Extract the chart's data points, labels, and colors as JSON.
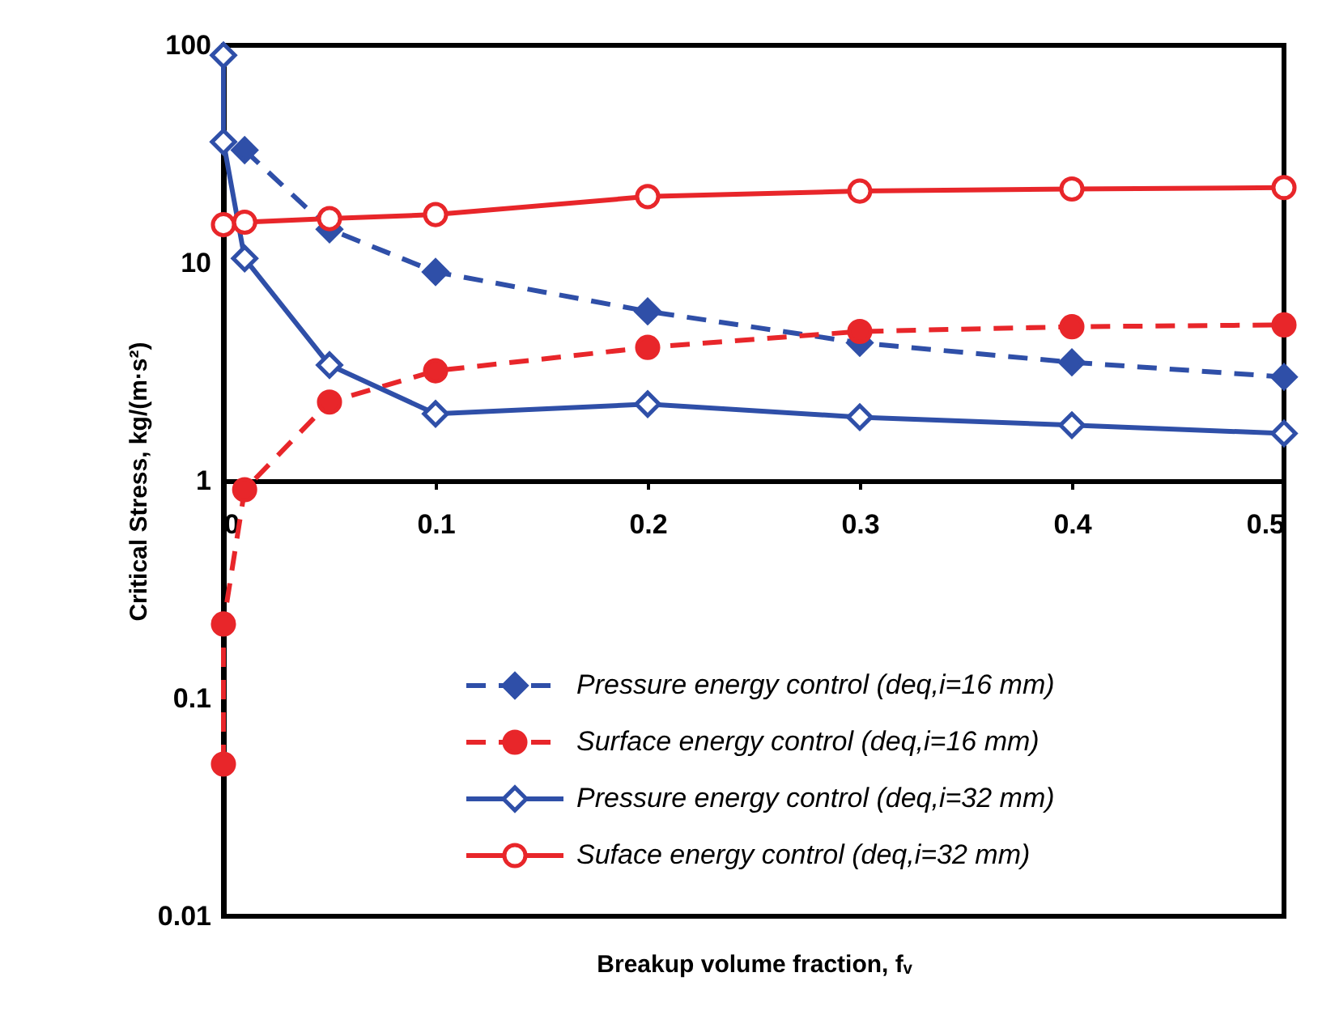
{
  "chart_data": {
    "type": "line",
    "xlabel": "Breakup volume fraction, fᵥ",
    "ylabel": "Critical Stress, kg/(m·s²)",
    "log": "y",
    "grid": false,
    "legend": "bottom right",
    "xlim": [
      0,
      0.5
    ],
    "xticks": [
      0,
      0.1,
      0.2,
      0.3,
      0.4,
      0.5
    ],
    "ylim": [
      0.01,
      100
    ],
    "yticks": [
      0.01,
      0.1,
      1,
      10,
      100
    ],
    "series": [
      {
        "name": "Pressure energy control (deq,i=16 mm)",
        "color": "#2f4fa8",
        "marker": "diamond",
        "line_style": "dashed",
        "x": [
          0.01,
          0.05,
          0.1,
          0.2,
          0.3,
          0.4,
          0.5
        ],
        "values": [
          33,
          14.3,
          9.1,
          6.0,
          4.3,
          3.5,
          3.0
        ]
      },
      {
        "name": "Surface energy control (deq,i=16 mm)",
        "color": "#e8262a",
        "marker": "circle",
        "line_style": "dashed",
        "x": [
          0,
          0,
          0.01,
          0.05,
          0.1,
          0.2,
          0.3,
          0.4,
          0.5
        ],
        "values": [
          0.05,
          0.22,
          0.91,
          2.3,
          3.2,
          4.1,
          4.85,
          5.1,
          5.2
        ]
      },
      {
        "name": "Pressure energy control (deq,i=32 mm)",
        "color": "#2f4fa8",
        "marker": "diamond",
        "line_style": "solid",
        "x": [
          0,
          0,
          0.01,
          0.05,
          0.1,
          0.2,
          0.3,
          0.4,
          0.5
        ],
        "values": [
          90,
          36,
          10.5,
          3.4,
          2.03,
          2.25,
          1.96,
          1.8,
          1.65
        ]
      },
      {
        "name": "Suface energy control (deq,i=32 mm)",
        "color": "#e8262a",
        "marker": "circle",
        "line_style": "solid",
        "x": [
          0,
          0.01,
          0.05,
          0.1,
          0.2,
          0.3,
          0.4,
          0.5
        ],
        "values": [
          15.0,
          15.4,
          16.0,
          16.7,
          20.2,
          21.4,
          21.9,
          22.2
        ]
      }
    ]
  }
}
